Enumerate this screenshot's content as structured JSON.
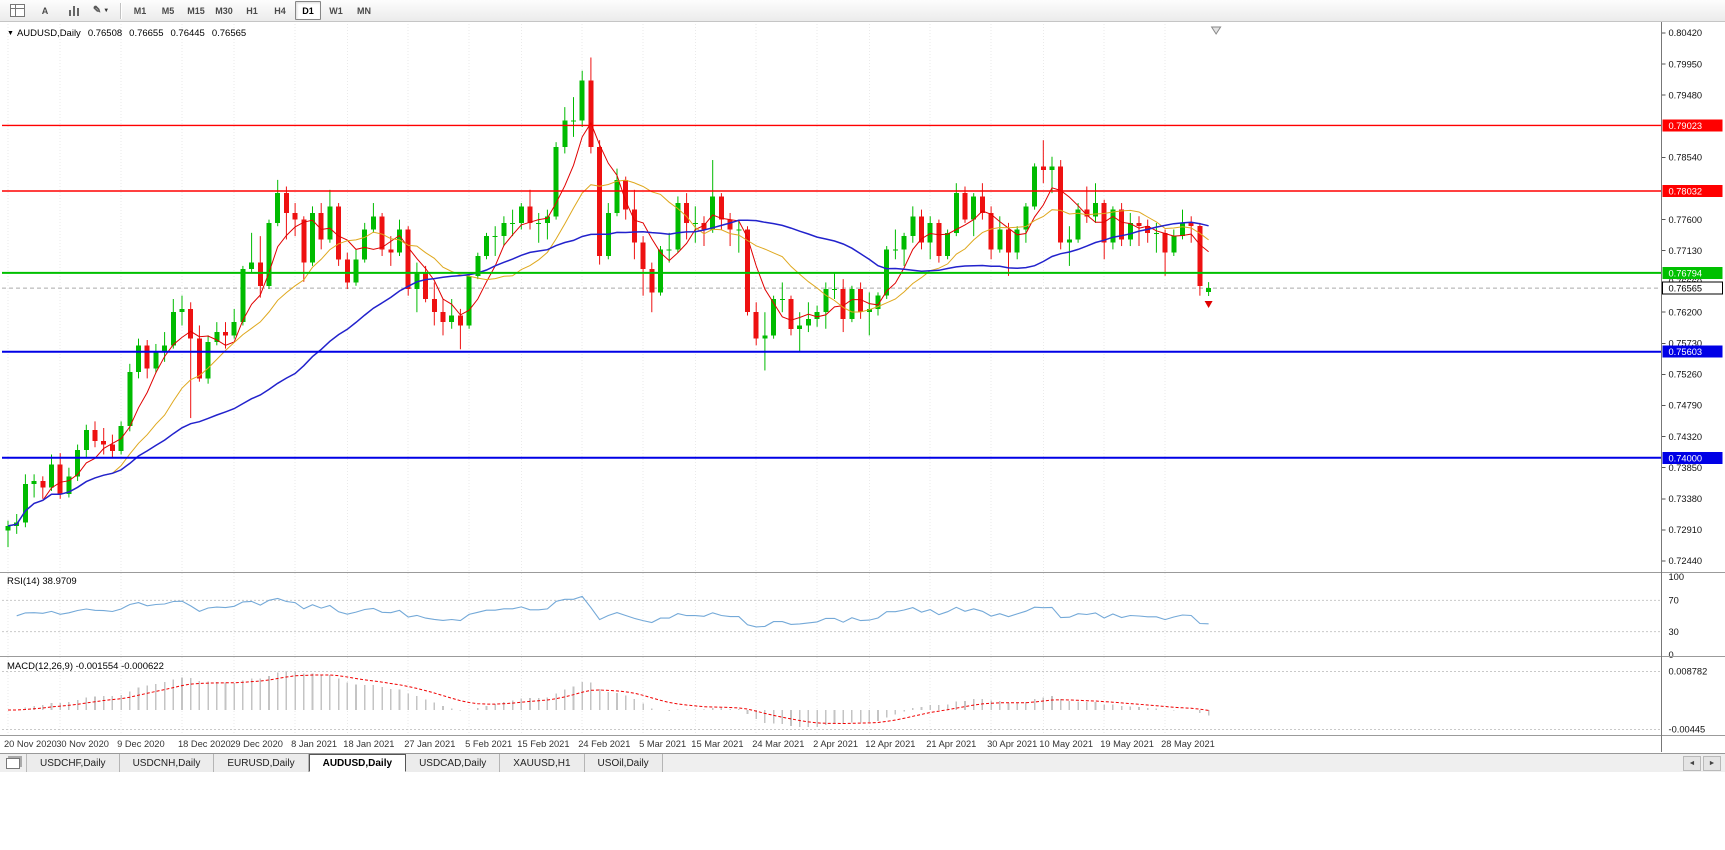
{
  "toolbar": {
    "text_button_label": "A",
    "timeframes": [
      "M1",
      "M5",
      "M15",
      "M30",
      "H1",
      "H4",
      "D1",
      "W1",
      "MN"
    ],
    "active_timeframe": "D1"
  },
  "chart_header": {
    "symbol": "AUDUSD,Daily",
    "open": "0.76508",
    "high": "0.76655",
    "low": "0.76445",
    "close": "0.76565"
  },
  "indicators": {
    "rsi_label": "RSI(14)",
    "rsi_value": "38.9709",
    "macd_label": "MACD(12,26,9)",
    "macd_values": "-0.001554 -0.000622"
  },
  "tabs": {
    "items": [
      "USDCHF,Daily",
      "USDCNH,Daily",
      "EURUSD,Daily",
      "AUDUSD,Daily",
      "USDCAD,Daily",
      "XAUUSD,H1",
      "USOil,Daily"
    ],
    "active_index": 3
  },
  "chart_data": {
    "type": "candlestick",
    "symbol": "AUDUSD",
    "timeframe": "Daily",
    "colors": {
      "up": "#00BB00",
      "down": "#EE1111",
      "ma_fast": "#E00000",
      "ma_mid": "#DFA81E",
      "ma_slow": "#2222CC",
      "rsi": "#74A9D8",
      "macd_hist": "#C4C4C4",
      "macd_signal": "#F00000",
      "grid": "#EAEAEA"
    },
    "price_range": {
      "top": 0.8042,
      "bottom": 0.7244
    },
    "y_axis_labels": [
      "0.80420",
      "0.79950",
      "0.79480",
      "0.78540",
      "0.77600",
      "0.77130",
      "0.76660",
      "0.76200",
      "0.75730",
      "0.75260",
      "0.74790",
      "0.74320",
      "0.73850",
      "0.73380",
      "0.72910",
      "0.72440"
    ],
    "x_labels": [
      {
        "text": "20 Nov 2020",
        "i": 0
      },
      {
        "text": "30 Nov 2020",
        "i": 6
      },
      {
        "text": "9 Dec 2020",
        "i": 13
      },
      {
        "text": "18 Dec 2020",
        "i": 20
      },
      {
        "text": "29 Dec 2020",
        "i": 26
      },
      {
        "text": "8 Jan 2021",
        "i": 33
      },
      {
        "text": "18 Jan 2021",
        "i": 39
      },
      {
        "text": "27 Jan 2021",
        "i": 46
      },
      {
        "text": "5 Feb 2021",
        "i": 53
      },
      {
        "text": "15 Feb 2021",
        "i": 59
      },
      {
        "text": "24 Feb 2021",
        "i": 66
      },
      {
        "text": "5 Mar 2021",
        "i": 73
      },
      {
        "text": "15 Mar 2021",
        "i": 79
      },
      {
        "text": "24 Mar 2021",
        "i": 86
      },
      {
        "text": "2 Apr 2021",
        "i": 93
      },
      {
        "text": "12 Apr 2021",
        "i": 99
      },
      {
        "text": "21 Apr 2021",
        "i": 106
      },
      {
        "text": "30 Apr 2021",
        "i": 113
      },
      {
        "text": "10 May 2021",
        "i": 119
      },
      {
        "text": "19 May 2021",
        "i": 126
      },
      {
        "text": "28 May 2021",
        "i": 133
      }
    ],
    "hlines": [
      {
        "price": 0.79023,
        "label": "0.79023",
        "color": "#FF0000",
        "width": 1.4
      },
      {
        "price": 0.78032,
        "label": "0.78032",
        "color": "#FF0000",
        "width": 1.4
      },
      {
        "price": 0.76794,
        "label": "0.76794",
        "color": "#00C000",
        "width": 2
      },
      {
        "price": 0.75603,
        "label": "0.75603",
        "color": "#0000E6",
        "width": 2
      },
      {
        "price": 0.74,
        "label": "0.74000",
        "color": "#0000E6",
        "width": 2
      }
    ],
    "current_price": {
      "price": 0.76565,
      "label": "0.76565"
    },
    "moving_averages": [
      {
        "period": 5,
        "color_key": "ma_fast",
        "width": 1
      },
      {
        "period": 13,
        "color_key": "ma_mid",
        "width": 1
      },
      {
        "period": 34,
        "color_key": "ma_slow",
        "width": 1.5
      }
    ],
    "rsi": {
      "period": 14,
      "value": 38.9709,
      "levels": [
        100,
        70,
        30,
        0
      ],
      "level_labels": [
        "100",
        "70",
        "30",
        "0"
      ]
    },
    "macd": {
      "fast": 12,
      "slow": 26,
      "signal": 9,
      "main": -0.001554,
      "signal_value": -0.000622,
      "scale_max": 0.008782,
      "scale_min": -0.00445,
      "scale_max_label": "0.008782",
      "scale_min_label": "-0.00445"
    },
    "candles": [
      [
        0.729,
        0.7305,
        0.7265,
        0.7297
      ],
      [
        0.7297,
        0.7315,
        0.7285,
        0.7302
      ],
      [
        0.7302,
        0.7375,
        0.7295,
        0.736
      ],
      [
        0.736,
        0.7375,
        0.734,
        0.7365
      ],
      [
        0.7365,
        0.7372,
        0.7338,
        0.7355
      ],
      [
        0.7355,
        0.7405,
        0.735,
        0.739
      ],
      [
        0.739,
        0.7407,
        0.7338,
        0.7345
      ],
      [
        0.7345,
        0.7385,
        0.734,
        0.7372
      ],
      [
        0.7372,
        0.742,
        0.7365,
        0.7412
      ],
      [
        0.7412,
        0.745,
        0.74,
        0.7442
      ],
      [
        0.7442,
        0.7455,
        0.7416,
        0.7425
      ],
      [
        0.7425,
        0.7445,
        0.7405,
        0.742
      ],
      [
        0.742,
        0.7435,
        0.74,
        0.741
      ],
      [
        0.741,
        0.7455,
        0.7405,
        0.7448
      ],
      [
        0.7448,
        0.7542,
        0.744,
        0.753
      ],
      [
        0.753,
        0.758,
        0.752,
        0.757
      ],
      [
        0.757,
        0.7578,
        0.752,
        0.7535
      ],
      [
        0.7535,
        0.7572,
        0.7528,
        0.756
      ],
      [
        0.756,
        0.759,
        0.7545,
        0.757
      ],
      [
        0.757,
        0.764,
        0.7565,
        0.762
      ],
      [
        0.762,
        0.7645,
        0.76,
        0.7625
      ],
      [
        0.7625,
        0.7635,
        0.746,
        0.758
      ],
      [
        0.758,
        0.76,
        0.7515,
        0.752
      ],
      [
        0.752,
        0.7585,
        0.7512,
        0.7575
      ],
      [
        0.7575,
        0.7605,
        0.757,
        0.759
      ],
      [
        0.759,
        0.7605,
        0.7565,
        0.7585
      ],
      [
        0.7585,
        0.7625,
        0.758,
        0.7605
      ],
      [
        0.7605,
        0.769,
        0.76,
        0.7685
      ],
      [
        0.7685,
        0.774,
        0.768,
        0.7695
      ],
      [
        0.7695,
        0.7735,
        0.7642,
        0.766
      ],
      [
        0.766,
        0.776,
        0.7655,
        0.7755
      ],
      [
        0.7755,
        0.782,
        0.775,
        0.78
      ],
      [
        0.78,
        0.781,
        0.773,
        0.777
      ],
      [
        0.777,
        0.7785,
        0.7735,
        0.776
      ],
      [
        0.776,
        0.7765,
        0.7666,
        0.7695
      ],
      [
        0.7695,
        0.778,
        0.769,
        0.777
      ],
      [
        0.777,
        0.7785,
        0.7715,
        0.773
      ],
      [
        0.773,
        0.7805,
        0.7725,
        0.778
      ],
      [
        0.778,
        0.7785,
        0.769,
        0.77
      ],
      [
        0.77,
        0.771,
        0.7655,
        0.7665
      ],
      [
        0.7665,
        0.7715,
        0.766,
        0.77
      ],
      [
        0.77,
        0.7755,
        0.7695,
        0.7745
      ],
      [
        0.7745,
        0.7785,
        0.774,
        0.7765
      ],
      [
        0.7765,
        0.777,
        0.7705,
        0.7715
      ],
      [
        0.7715,
        0.7735,
        0.769,
        0.771
      ],
      [
        0.771,
        0.776,
        0.7705,
        0.7745
      ],
      [
        0.7745,
        0.775,
        0.7645,
        0.7655
      ],
      [
        0.7655,
        0.7695,
        0.762,
        0.768
      ],
      [
        0.768,
        0.769,
        0.7635,
        0.764
      ],
      [
        0.764,
        0.7665,
        0.76,
        0.762
      ],
      [
        0.762,
        0.764,
        0.7585,
        0.7605
      ],
      [
        0.7605,
        0.764,
        0.7595,
        0.7615
      ],
      [
        0.7615,
        0.7625,
        0.7564,
        0.76
      ],
      [
        0.76,
        0.768,
        0.7595,
        0.7675
      ],
      [
        0.7675,
        0.771,
        0.767,
        0.7705
      ],
      [
        0.7705,
        0.774,
        0.77,
        0.7735
      ],
      [
        0.7735,
        0.775,
        0.7705,
        0.7735
      ],
      [
        0.7735,
        0.7765,
        0.772,
        0.7755
      ],
      [
        0.7755,
        0.7775,
        0.7735,
        0.7755
      ],
      [
        0.7755,
        0.7785,
        0.7745,
        0.778
      ],
      [
        0.778,
        0.7805,
        0.7745,
        0.7755
      ],
      [
        0.7755,
        0.777,
        0.7725,
        0.7755
      ],
      [
        0.7755,
        0.7775,
        0.773,
        0.7765
      ],
      [
        0.7765,
        0.7877,
        0.776,
        0.787
      ],
      [
        0.787,
        0.793,
        0.786,
        0.791
      ],
      [
        0.791,
        0.7945,
        0.7885,
        0.791
      ],
      [
        0.791,
        0.7985,
        0.79,
        0.797
      ],
      [
        0.797,
        0.8005,
        0.786,
        0.787
      ],
      [
        0.787,
        0.788,
        0.7692,
        0.7705
      ],
      [
        0.7705,
        0.7785,
        0.77,
        0.777
      ],
      [
        0.777,
        0.7837,
        0.7765,
        0.782
      ],
      [
        0.782,
        0.7825,
        0.776,
        0.7775
      ],
      [
        0.7775,
        0.7805,
        0.77,
        0.7725
      ],
      [
        0.7725,
        0.7735,
        0.7645,
        0.7685
      ],
      [
        0.7685,
        0.7695,
        0.762,
        0.765
      ],
      [
        0.765,
        0.772,
        0.7645,
        0.7715
      ],
      [
        0.7715,
        0.774,
        0.7695,
        0.7715
      ],
      [
        0.7715,
        0.7795,
        0.771,
        0.7785
      ],
      [
        0.7785,
        0.78,
        0.773,
        0.7755
      ],
      [
        0.7755,
        0.778,
        0.7725,
        0.7755
      ],
      [
        0.7755,
        0.7765,
        0.772,
        0.7745
      ],
      [
        0.7745,
        0.785,
        0.774,
        0.7795
      ],
      [
        0.7795,
        0.78,
        0.7745,
        0.776
      ],
      [
        0.776,
        0.777,
        0.772,
        0.7745
      ],
      [
        0.7745,
        0.776,
        0.771,
        0.7745
      ],
      [
        0.7745,
        0.775,
        0.7615,
        0.762
      ],
      [
        0.762,
        0.7635,
        0.757,
        0.758
      ],
      [
        0.758,
        0.762,
        0.7532,
        0.7585
      ],
      [
        0.7585,
        0.7645,
        0.758,
        0.764
      ],
      [
        0.764,
        0.7665,
        0.762,
        0.764
      ],
      [
        0.764,
        0.7645,
        0.7585,
        0.7595
      ],
      [
        0.7595,
        0.762,
        0.756,
        0.76
      ],
      [
        0.76,
        0.7635,
        0.759,
        0.761
      ],
      [
        0.761,
        0.763,
        0.7598,
        0.762
      ],
      [
        0.762,
        0.7665,
        0.7595,
        0.7655
      ],
      [
        0.7655,
        0.768,
        0.764,
        0.7655
      ],
      [
        0.7655,
        0.767,
        0.759,
        0.761
      ],
      [
        0.761,
        0.766,
        0.7605,
        0.7655
      ],
      [
        0.7655,
        0.7665,
        0.761,
        0.762
      ],
      [
        0.762,
        0.765,
        0.7585,
        0.7625
      ],
      [
        0.7625,
        0.765,
        0.7615,
        0.7645
      ],
      [
        0.7645,
        0.772,
        0.764,
        0.7715
      ],
      [
        0.7715,
        0.7745,
        0.77,
        0.7715
      ],
      [
        0.7715,
        0.774,
        0.769,
        0.7735
      ],
      [
        0.7735,
        0.778,
        0.7725,
        0.7765
      ],
      [
        0.7765,
        0.7775,
        0.7715,
        0.7725
      ],
      [
        0.7725,
        0.7765,
        0.77,
        0.7755
      ],
      [
        0.7755,
        0.776,
        0.7695,
        0.7705
      ],
      [
        0.7705,
        0.7745,
        0.77,
        0.774
      ],
      [
        0.774,
        0.7815,
        0.7735,
        0.78
      ],
      [
        0.78,
        0.781,
        0.7755,
        0.776
      ],
      [
        0.776,
        0.78,
        0.7735,
        0.7795
      ],
      [
        0.7795,
        0.7815,
        0.776,
        0.777
      ],
      [
        0.777,
        0.778,
        0.77,
        0.7715
      ],
      [
        0.7715,
        0.7765,
        0.771,
        0.7745
      ],
      [
        0.7745,
        0.7755,
        0.7675,
        0.771
      ],
      [
        0.771,
        0.775,
        0.77,
        0.7745
      ],
      [
        0.7745,
        0.7785,
        0.7725,
        0.778
      ],
      [
        0.778,
        0.7845,
        0.7775,
        0.784
      ],
      [
        0.784,
        0.788,
        0.7815,
        0.7835
      ],
      [
        0.7835,
        0.7855,
        0.78,
        0.784
      ],
      [
        0.784,
        0.785,
        0.7715,
        0.7725
      ],
      [
        0.7725,
        0.775,
        0.769,
        0.773
      ],
      [
        0.773,
        0.7785,
        0.7725,
        0.7775
      ],
      [
        0.7775,
        0.781,
        0.7755,
        0.7765
      ],
      [
        0.7765,
        0.7815,
        0.7755,
        0.7785
      ],
      [
        0.7785,
        0.779,
        0.77,
        0.7725
      ],
      [
        0.7725,
        0.778,
        0.7715,
        0.7775
      ],
      [
        0.7775,
        0.7785,
        0.772,
        0.773
      ],
      [
        0.773,
        0.777,
        0.772,
        0.7755
      ],
      [
        0.7755,
        0.7765,
        0.772,
        0.775
      ],
      [
        0.775,
        0.776,
        0.7725,
        0.774
      ],
      [
        0.774,
        0.7755,
        0.771,
        0.774
      ],
      [
        0.774,
        0.7745,
        0.7675,
        0.771
      ],
      [
        0.771,
        0.7745,
        0.7705,
        0.7735
      ],
      [
        0.7735,
        0.7775,
        0.773,
        0.7755
      ],
      [
        0.7755,
        0.7765,
        0.7725,
        0.775
      ],
      [
        0.775,
        0.7755,
        0.7645,
        0.766
      ],
      [
        0.76508,
        0.76655,
        0.76445,
        0.76565
      ]
    ]
  }
}
